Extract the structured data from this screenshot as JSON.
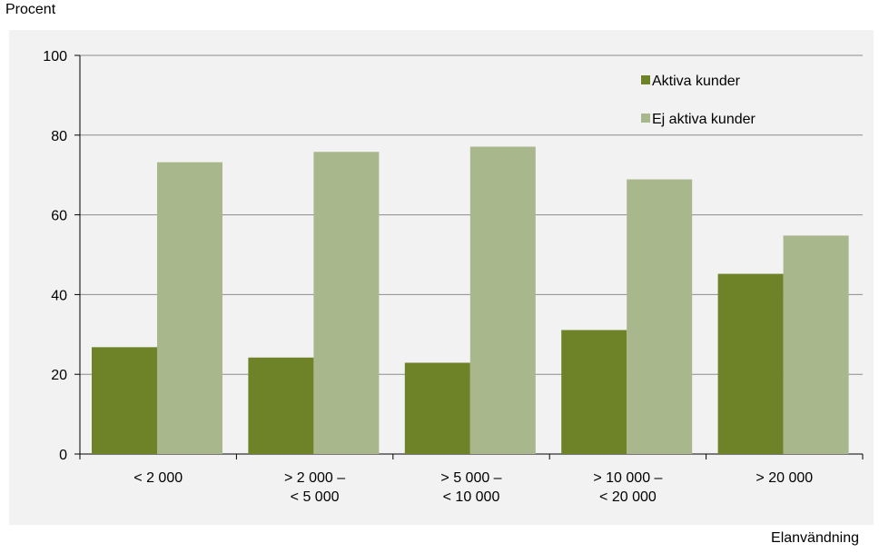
{
  "chart_data": {
    "type": "bar",
    "ylabel": "Procent",
    "xlabel": "Elanvändning",
    "ylim": [
      0,
      100
    ],
    "yticks": [
      0,
      20,
      40,
      60,
      80,
      100
    ],
    "grid": true,
    "legend_position": "top-right",
    "categories": [
      [
        "< 2 000"
      ],
      [
        "> 2 000 –",
        "< 5 000"
      ],
      [
        "> 5 000 –",
        "< 10 000"
      ],
      [
        "> 10 000 –",
        "< 20 000"
      ],
      [
        "> 20 000"
      ]
    ],
    "series": [
      {
        "name": "Aktiva kunder",
        "color": "#6e8228",
        "values": [
          26.8,
          24.2,
          22.9,
          31.1,
          45.2
        ]
      },
      {
        "name": "Ej aktiva kunder",
        "color": "#a8b78c",
        "values": [
          73.2,
          75.8,
          77.1,
          68.9,
          54.8
        ]
      }
    ]
  }
}
